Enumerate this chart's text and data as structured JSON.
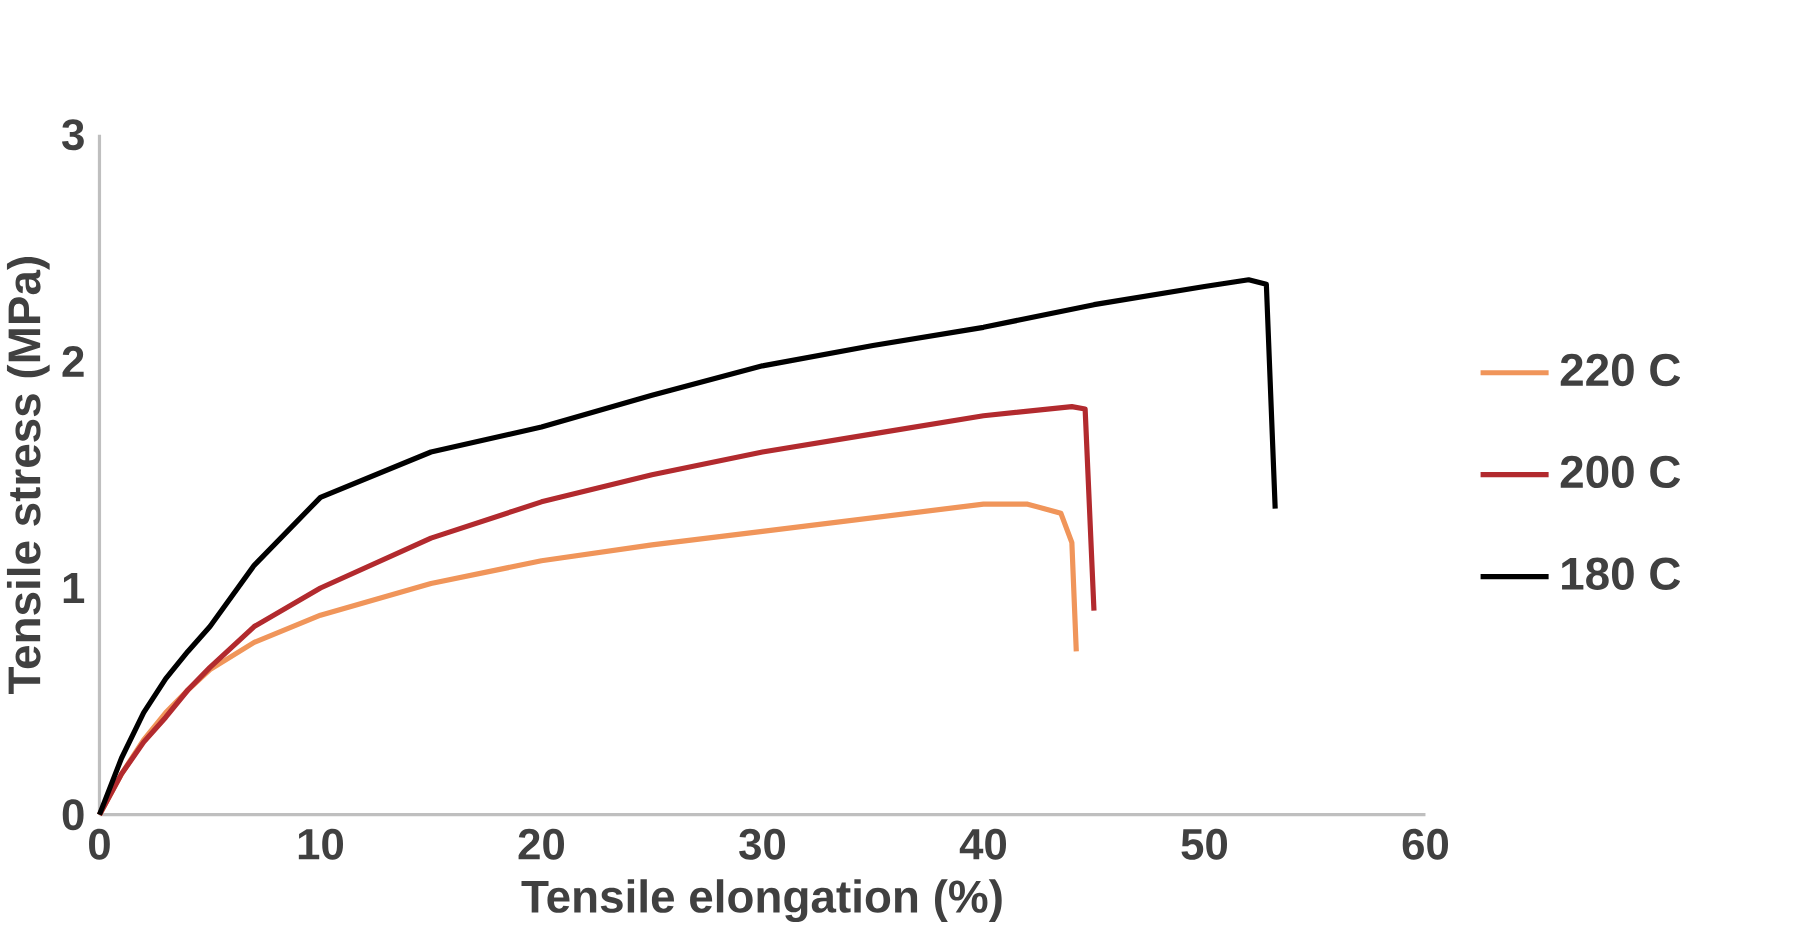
{
  "chart_data": {
    "type": "line",
    "xlabel": "Tensile elongation (%)",
    "ylabel": "Tensile stress (MPa)",
    "xlim": [
      0,
      60
    ],
    "ylim": [
      0,
      3
    ],
    "xticks": [
      0,
      10,
      20,
      30,
      40,
      50,
      60
    ],
    "yticks": [
      0,
      1,
      2,
      3
    ],
    "grid": false,
    "legend": "right",
    "marker": "none",
    "line_style": "solid",
    "series": [
      {
        "name": "220 C",
        "color": "#f0955a",
        "x": [
          0,
          1,
          2,
          3,
          4,
          5,
          7,
          10,
          15,
          20,
          25,
          30,
          35,
          40,
          42,
          43.5,
          44,
          44.2
        ],
        "values": [
          0,
          0.18,
          0.33,
          0.45,
          0.55,
          0.64,
          0.76,
          0.88,
          1.02,
          1.12,
          1.19,
          1.25,
          1.31,
          1.37,
          1.37,
          1.33,
          1.2,
          0.72
        ]
      },
      {
        "name": "200 C",
        "color": "#b22a2e",
        "x": [
          0,
          1,
          2,
          3,
          4,
          5,
          7,
          10,
          15,
          20,
          25,
          30,
          35,
          40,
          44,
          44.6,
          45
        ],
        "values": [
          0,
          0.18,
          0.32,
          0.43,
          0.55,
          0.65,
          0.83,
          1.0,
          1.22,
          1.38,
          1.5,
          1.6,
          1.68,
          1.76,
          1.8,
          1.79,
          0.9
        ]
      },
      {
        "name": "180 C",
        "color": "#000000",
        "x": [
          0,
          1,
          2,
          3,
          4,
          5,
          7,
          10,
          15,
          20,
          25,
          30,
          35,
          40,
          45,
          50,
          52,
          52.8,
          53.2
        ],
        "values": [
          0,
          0.25,
          0.45,
          0.6,
          0.72,
          0.83,
          1.1,
          1.4,
          1.6,
          1.71,
          1.85,
          1.98,
          2.07,
          2.15,
          2.25,
          2.33,
          2.36,
          2.34,
          1.35
        ]
      }
    ]
  }
}
